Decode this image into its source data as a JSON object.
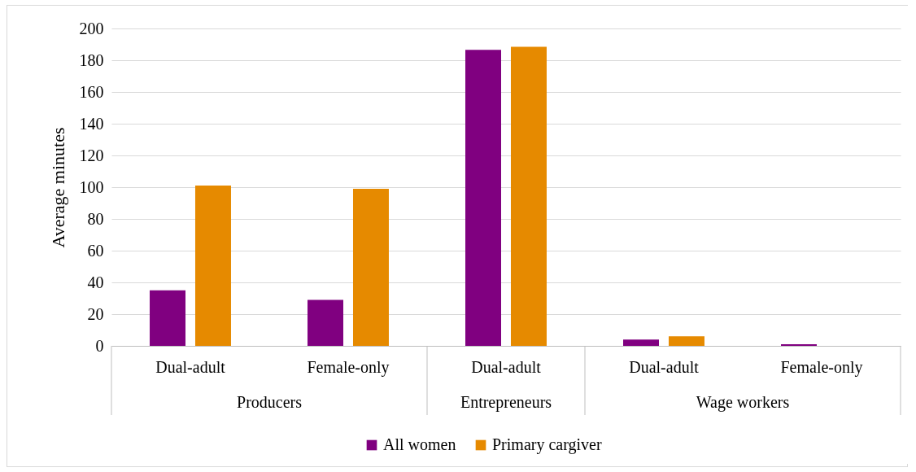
{
  "chart_data": {
    "type": "bar",
    "ylabel": "Average minutes",
    "categories": [
      "Dual-adult",
      "Female-only",
      "Dual-adult",
      "Dual-adult",
      "Female-only"
    ],
    "series": [
      {
        "name": "All women",
        "color": "#800080",
        "values": [
          35,
          29,
          186.5,
          4,
          1
        ]
      },
      {
        "name": "Primary cargiver",
        "color": "#e68a00",
        "values": [
          101,
          99,
          188.5,
          6,
          null
        ]
      }
    ],
    "annotations": [
      "Producers",
      "Entrepreneurs",
      "Wage workers"
    ],
    "ylim": [
      0,
      200
    ],
    "yticks": [
      0,
      20,
      40,
      60,
      80,
      100,
      120,
      140,
      160,
      180,
      200
    ],
    "grid": "y",
    "legend": "bottom"
  }
}
